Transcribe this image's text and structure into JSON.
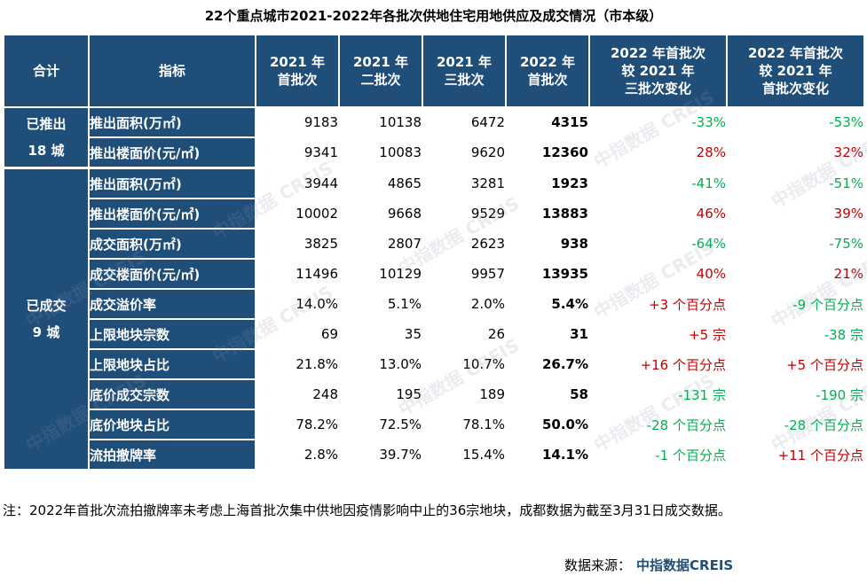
{
  "title": "22个重点城市2021-2022年各批次供地住宅用地供应及成交情况（市本级）",
  "header": {
    "total": "合计",
    "indicator": "指标",
    "cols": [
      [
        "2021 年",
        "首批次"
      ],
      [
        "2021 年",
        "二批次"
      ],
      [
        "2021 年",
        "三批次"
      ],
      [
        "2022 年",
        "首批次"
      ],
      [
        "2022 年首批次",
        "较 2021 年",
        "三批次变化"
      ],
      [
        "2022 年首批次",
        "较 2021 年",
        "首批次变化"
      ]
    ]
  },
  "groups": [
    {
      "label": [
        "已推出",
        "18 城"
      ],
      "rows": [
        {
          "name": "推出面积(万㎡)",
          "v": [
            "9183",
            "10138",
            "6472",
            "4315"
          ],
          "c1": "-33%",
          "c1_dir": "down",
          "c2": "-53%",
          "c2_dir": "down"
        },
        {
          "name": "推出楼面价(元/㎡)",
          "v": [
            "9341",
            "10083",
            "9620",
            "12360"
          ],
          "c1": "28%",
          "c1_dir": "up",
          "c2": "32%",
          "c2_dir": "up"
        }
      ]
    },
    {
      "label": [
        "已成交",
        "9 城"
      ],
      "rows": [
        {
          "name": "推出面积(万㎡)",
          "v": [
            "3944",
            "4865",
            "3281",
            "1923"
          ],
          "c1": "-41%",
          "c1_dir": "down",
          "c2": "-51%",
          "c2_dir": "down"
        },
        {
          "name": "推出楼面价(元/㎡)",
          "v": [
            "10002",
            "9668",
            "9529",
            "13883"
          ],
          "c1": "46%",
          "c1_dir": "up",
          "c2": "39%",
          "c2_dir": "up"
        },
        {
          "name": "成交面积(万㎡)",
          "v": [
            "3825",
            "2807",
            "2623",
            "938"
          ],
          "c1": "-64%",
          "c1_dir": "down",
          "c2": "-75%",
          "c2_dir": "down"
        },
        {
          "name": "成交楼面价(元/㎡)",
          "v": [
            "11496",
            "10129",
            "9957",
            "13935"
          ],
          "c1": "40%",
          "c1_dir": "up",
          "c2": "21%",
          "c2_dir": "up"
        },
        {
          "name": "成交溢价率",
          "v": [
            "14.0%",
            "5.1%",
            "2.0%",
            "5.4%"
          ],
          "c1": "+3 个百分点",
          "c1_dir": "up",
          "c2": "-9 个百分点",
          "c2_dir": "down"
        },
        {
          "name": "上限地块宗数",
          "v": [
            "69",
            "35",
            "26",
            "31"
          ],
          "c1": "+5 宗",
          "c1_dir": "up",
          "c2": "-38 宗",
          "c2_dir": "down"
        },
        {
          "name": "上限地块占比",
          "v": [
            "21.8%",
            "13.0%",
            "10.7%",
            "26.7%"
          ],
          "c1": "+16 个百分点",
          "c1_dir": "up",
          "c2": "+5 个百分点",
          "c2_dir": "up"
        },
        {
          "name": "底价成交宗数",
          "v": [
            "248",
            "195",
            "189",
            "58"
          ],
          "c1": "-131 宗",
          "c1_dir": "down",
          "c2": "-190 宗",
          "c2_dir": "down"
        },
        {
          "name": "底价地块占比",
          "v": [
            "78.2%",
            "72.5%",
            "78.1%",
            "50.0%"
          ],
          "c1": "-28 个百分点",
          "c1_dir": "down",
          "c2": "-28 个百分点",
          "c2_dir": "down"
        },
        {
          "name": "流拍撤牌率",
          "v": [
            "2.8%",
            "39.7%",
            "15.4%",
            "14.1%"
          ],
          "c1": "-1 个百分点",
          "c1_dir": "down",
          "c2": "+11 个百分点",
          "c2_dir": "up"
        }
      ]
    }
  ],
  "note": "注：2022年首批次流拍撤牌率未考虑上海首批次集中供地因疫情影响中止的36宗地块，成都数据为截至3月31日成交数据。",
  "source_label": "数据来源：",
  "source_brand": "中指数据CREIS",
  "watermark": "中指数据 CREIS",
  "colors": {
    "header": "#1f4e79",
    "up": "#c00000",
    "down": "#00b050"
  }
}
